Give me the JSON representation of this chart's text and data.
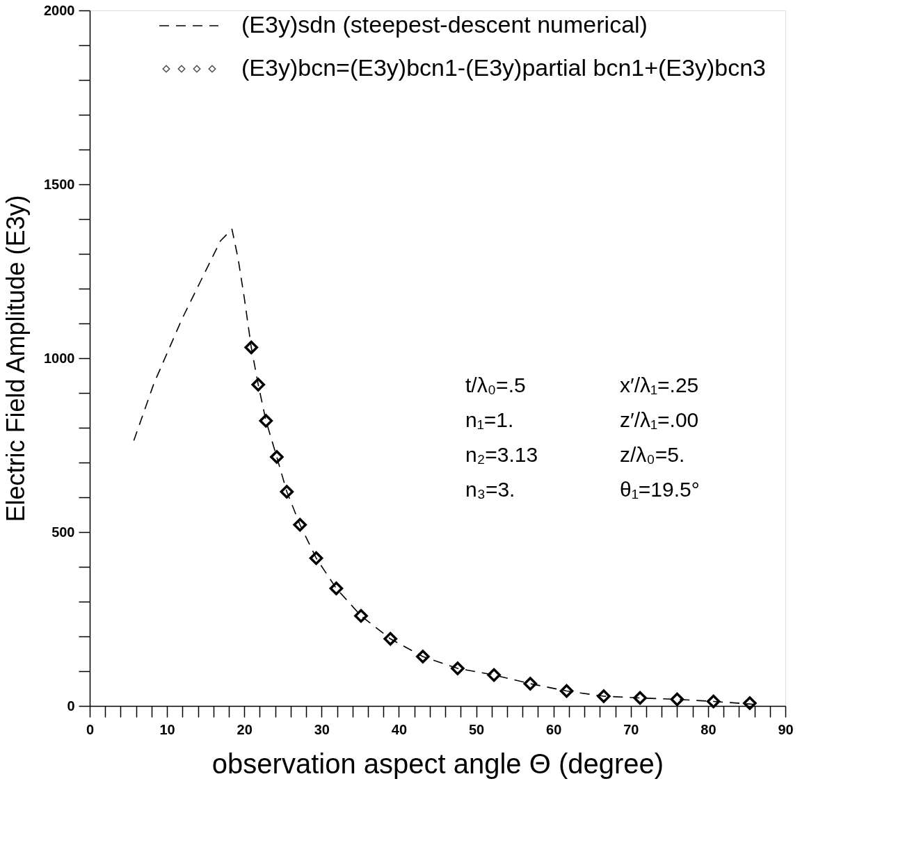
{
  "chart_data": {
    "type": "line",
    "xlabel": "observation aspect angle Θ (degree)",
    "ylabel": "Electric Field Amplitude (E3y)",
    "xlim": [
      0,
      90
    ],
    "ylim": [
      0,
      2000
    ],
    "xticks": [
      0,
      {
        "value": 2,
        "label": null
      },
      {
        "value": 4,
        "label": null
      },
      {
        "value": 6,
        "label": null
      },
      {
        "value": 8,
        "label": null
      },
      10,
      {
        "value": 12,
        "label": null
      },
      {
        "value": 14,
        "label": null
      },
      {
        "value": 16,
        "label": null
      },
      {
        "value": 18,
        "label": null
      },
      20,
      {
        "value": 22,
        "label": null
      },
      {
        "value": 24,
        "label": null
      },
      {
        "value": 26,
        "label": null
      },
      {
        "value": 28,
        "label": null
      },
      30,
      {
        "value": 32,
        "label": null
      },
      {
        "value": 34,
        "label": null
      },
      {
        "value": 36,
        "label": null
      },
      {
        "value": 38,
        "label": null
      },
      40,
      {
        "value": 42,
        "label": null
      },
      {
        "value": 44,
        "label": null
      },
      {
        "value": 46,
        "label": null
      },
      {
        "value": 48,
        "label": null
      },
      50,
      {
        "value": 52,
        "label": null
      },
      {
        "value": 54,
        "label": null
      },
      {
        "value": 56,
        "label": null
      },
      {
        "value": 58,
        "label": null
      },
      60,
      {
        "value": 62,
        "label": null
      },
      {
        "value": 64,
        "label": null
      },
      {
        "value": 66,
        "label": null
      },
      {
        "value": 68,
        "label": null
      },
      70,
      {
        "value": 72,
        "label": null
      },
      {
        "value": 74,
        "label": null
      },
      {
        "value": 76,
        "label": null
      },
      {
        "value": 78,
        "label": null
      },
      80,
      {
        "value": 82,
        "label": null
      },
      {
        "value": 84,
        "label": null
      },
      {
        "value": 86,
        "label": null
      },
      {
        "value": 88,
        "label": null
      },
      90
    ],
    "yticks": [
      0,
      {
        "value": 100,
        "label": null
      },
      {
        "value": 200,
        "label": null
      },
      {
        "value": 300,
        "label": null
      },
      {
        "value": 400,
        "label": null
      },
      500,
      {
        "value": 600,
        "label": null
      },
      {
        "value": 700,
        "label": null
      },
      {
        "value": 800,
        "label": null
      },
      {
        "value": 900,
        "label": null
      },
      1000,
      {
        "value": 1100,
        "label": null
      },
      {
        "value": 1200,
        "label": null
      },
      {
        "value": 1300,
        "label": null
      },
      {
        "value": 1400,
        "label": null
      },
      1500,
      {
        "value": 1600,
        "label": null
      },
      {
        "value": 1700,
        "label": null
      },
      {
        "value": 1800,
        "label": null
      },
      {
        "value": 1900,
        "label": null
      },
      2000
    ],
    "grid": false,
    "legend": "top",
    "series": [
      {
        "name": "(E3y)sdn (steepest-descent numerical)",
        "line_style": "dashed",
        "marker": "none",
        "color": "#000000",
        "x": [
          5.7,
          8.3,
          11.9,
          14.4,
          16.9,
          18.4,
          19.2,
          20.0,
          20.9,
          21.8,
          22.8,
          24.2,
          25.5,
          27.2,
          29.3,
          31.9,
          35.1,
          38.9,
          43.1,
          47.6,
          52.3,
          57.0,
          61.7,
          66.5,
          71.2,
          76.0,
          80.7,
          85.8
        ],
        "values": [
          763,
          927,
          1111,
          1224,
          1337,
          1371,
          1286,
          1173,
          1031,
          924,
          820,
          716,
          616,
          521,
          425,
          338,
          259,
          193,
          142,
          108,
          89,
          64,
          43,
          28,
          23,
          19,
          13,
          5
        ]
      },
      {
        "name": "(E3y)bcn=(E3y)bcn1-(E3y)partial bcn1+(E3y)bcn3",
        "type": "scatter",
        "marker": "diamond",
        "color": "#000000",
        "x": [
          20.9,
          21.8,
          22.8,
          24.2,
          25.5,
          27.2,
          29.3,
          31.9,
          35.1,
          38.9,
          43.1,
          47.6,
          52.3,
          57.0,
          61.7,
          66.5,
          71.2,
          76.0,
          80.7,
          85.4
        ],
        "values": [
          1031,
          924,
          820,
          716,
          616,
          521,
          425,
          338,
          259,
          193,
          142,
          108,
          89,
          64,
          43,
          28,
          23,
          19,
          13,
          8
        ]
      }
    ],
    "annotations": [
      "t/λ₀=.5",
      "x′/λ₁=.25",
      "n₁=1.",
      "z′/λ₁=.00",
      "n₂=3.13",
      "z/λ₀=5.",
      "n₃=3.",
      "θ₁=19.5°"
    ]
  }
}
